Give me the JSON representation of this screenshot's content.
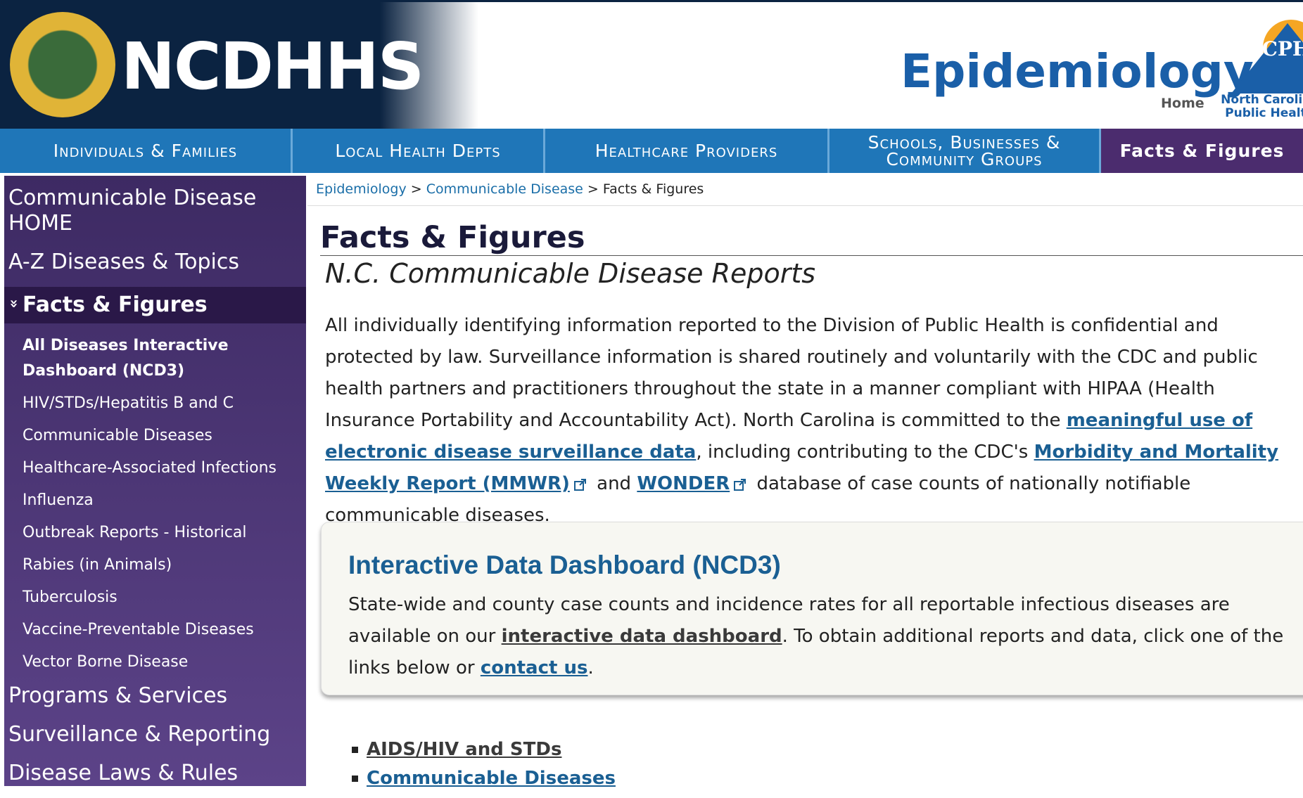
{
  "header": {
    "logo_text": "NCDHHS",
    "site_title": "Epidemiology",
    "home": "Home",
    "ncph_logo": "NCPH",
    "ncph_sub": "North Carolina Public Health"
  },
  "nav": [
    {
      "label": "Individuals & Families"
    },
    {
      "label": "Local Health Depts"
    },
    {
      "label": "Healthcare Providers"
    },
    {
      "label": "Schools, Businesses & Community Groups"
    },
    {
      "label": "Facts & Figures",
      "active": true
    }
  ],
  "sidebar": [
    {
      "label": "Communicable Disease HOME",
      "level": 1
    },
    {
      "label": "A-Z Diseases & Topics",
      "level": 1
    },
    {
      "label": "Facts & Figures",
      "level": 1,
      "active": true
    },
    {
      "label": "All Diseases Interactive Dashboard (NCD3)",
      "level": 2,
      "active": true
    },
    {
      "label": "HIV/STDs/Hepatitis B and C",
      "level": 2
    },
    {
      "label": "Communicable Diseases",
      "level": 2
    },
    {
      "label": "Healthcare-Associated Infections",
      "level": 2
    },
    {
      "label": "Influenza",
      "level": 2
    },
    {
      "label": "Outbreak Reports - Historical",
      "level": 2
    },
    {
      "label": "Rabies (in Animals)",
      "level": 2
    },
    {
      "label": "Tuberculosis",
      "level": 2
    },
    {
      "label": "Vaccine-Preventable Diseases",
      "level": 2
    },
    {
      "label": "Vector Borne Disease",
      "level": 2
    },
    {
      "label": "Programs & Services",
      "level": 1
    },
    {
      "label": "Surveillance & Reporting",
      "level": 1
    },
    {
      "label": "Disease Laws & Rules",
      "level": 1
    }
  ],
  "breadcrumb": [
    {
      "label": "Epidemiology",
      "link": true
    },
    {
      "label": "Communicable Disease",
      "link": true
    },
    {
      "label": "Facts & Figures",
      "link": false
    }
  ],
  "page_title": "Facts & Figures",
  "subtitle": "N.C. Communicable Disease Reports",
  "intro": [
    {
      "text": "All individually identifying information reported to the Division of Public Health is confidential and protected by law. Surveillance information is shared routinely and voluntarily with the CDC and public health partners and practitioners throughout the state in a manner compliant with HIPAA (Health Insurance Portability and Accountability Act). North Carolina is committed to the "
    },
    {
      "link": "meaningful use of electronic disease surveillance data"
    },
    {
      "text": ", including contributing to the CDC's "
    },
    {
      "link": "Morbidity and Mortality Weekly Report (MMWR)",
      "external": true
    },
    {
      "text": " and "
    },
    {
      "link": "WONDER",
      "external": true
    },
    {
      "text": " database of case counts of nationally notifiable communicable diseases."
    }
  ],
  "dashboard": {
    "heading": "Interactive Data Dashboard (NCD3)",
    "body": [
      {
        "text": "State-wide and county case counts and incidence rates for all reportable infectious diseases are available on our "
      },
      {
        "link": "interactive data dashboard",
        "dark": true
      },
      {
        "text": ". To obtain additional reports and data, click one of the links below or "
      },
      {
        "link": "contact us"
      },
      {
        "text": "."
      }
    ]
  },
  "links": [
    {
      "label": "AIDS/HIV and STDs",
      "dark": true
    },
    {
      "label": "Communicable Diseases"
    }
  ]
}
